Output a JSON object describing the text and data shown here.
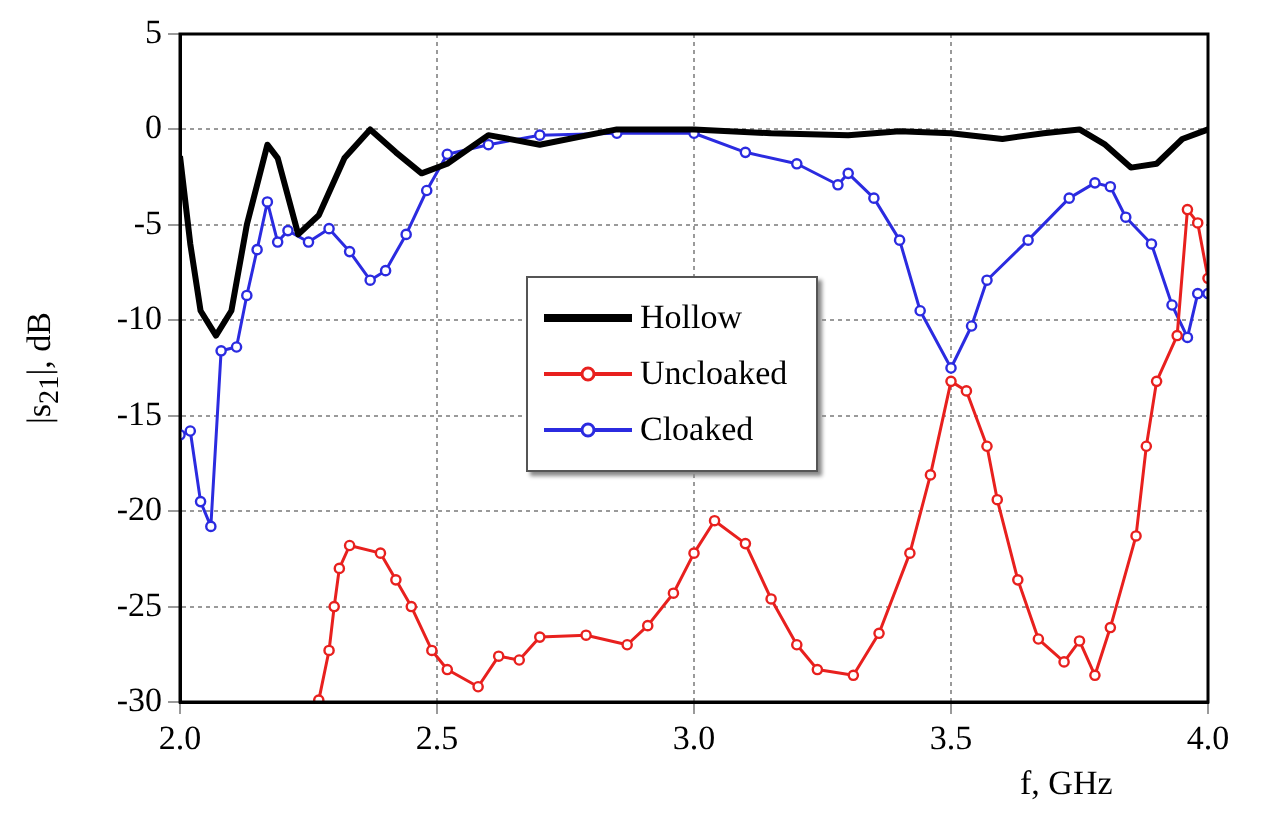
{
  "chart_data": {
    "type": "line",
    "xlabel": "f, GHz",
    "ylabel": "|s$_{21}$|, dB",
    "xlim": [
      2,
      4
    ],
    "ylim": [
      -30,
      5
    ],
    "xticks": [
      {
        "value": 2,
        "label": "2.0"
      },
      {
        "value": 2.5,
        "label": "2.5"
      },
      {
        "value": 3,
        "label": "3.0"
      },
      {
        "value": 3.5,
        "label": "3.5"
      },
      {
        "value": 4,
        "label": "4.0"
      }
    ],
    "yticks": [
      5,
      0,
      -5,
      -10,
      -15,
      -20,
      -25,
      -30
    ],
    "grid": true,
    "legend": "center",
    "line_style": "solid",
    "series": [
      {
        "name": "Hollow",
        "color": "#000000",
        "marker": "none",
        "x": [
          2.0,
          2.02,
          2.04,
          2.07,
          2.1,
          2.13,
          2.17,
          2.19,
          2.23,
          2.27,
          2.32,
          2.37,
          2.42,
          2.47,
          2.52,
          2.6,
          2.7,
          2.85,
          3.0,
          3.15,
          3.3,
          3.4,
          3.5,
          3.6,
          3.68,
          3.75,
          3.8,
          3.85,
          3.9,
          3.95,
          4.0
        ],
        "values": [
          -1.4,
          -6,
          -9.5,
          -10.8,
          -9.5,
          -5,
          -0.8,
          -1.5,
          -5.5,
          -4.5,
          -1.5,
          0,
          -1.2,
          -2.3,
          -1.8,
          -0.3,
          -0.8,
          0,
          0,
          -0.2,
          -0.3,
          -0.1,
          -0.2,
          -0.5,
          -0.2,
          0,
          -0.8,
          -2,
          -1.8,
          -0.5,
          0
        ]
      },
      {
        "name": "Uncloaked",
        "color": "#e8201e",
        "marker": "circle",
        "x": [
          2.27,
          2.29,
          2.3,
          2.31,
          2.33,
          2.39,
          2.42,
          2.45,
          2.49,
          2.52,
          2.58,
          2.62,
          2.66,
          2.7,
          2.79,
          2.87,
          2.91,
          2.96,
          3.0,
          3.04,
          3.1,
          3.15,
          3.2,
          3.24,
          3.31,
          3.36,
          3.42,
          3.46,
          3.5,
          3.53,
          3.57,
          3.59,
          3.63,
          3.67,
          3.72,
          3.75,
          3.78,
          3.81,
          3.86,
          3.88,
          3.9,
          3.94,
          3.96,
          3.98,
          4.0
        ],
        "values": [
          -29.9,
          -27.3,
          -25,
          -23,
          -21.8,
          -22.2,
          -23.6,
          -25,
          -27.3,
          -28.3,
          -29.2,
          -27.6,
          -27.8,
          -26.6,
          -26.5,
          -27,
          -26,
          -24.3,
          -22.2,
          -20.5,
          -21.7,
          -24.6,
          -27,
          -28.3,
          -28.6,
          -26.4,
          -22.2,
          -18.1,
          -13.2,
          -13.7,
          -16.6,
          -19.4,
          -23.6,
          -26.7,
          -27.9,
          -26.8,
          -28.6,
          -26.1,
          -21.3,
          -16.6,
          -13.2,
          -10.8,
          -4.2,
          -4.9,
          -7.8
        ]
      },
      {
        "name": "Cloaked",
        "color": "#2b2be0",
        "marker": "circle",
        "x": [
          2.0,
          2.02,
          2.04,
          2.06,
          2.08,
          2.11,
          2.13,
          2.15,
          2.17,
          2.19,
          2.21,
          2.25,
          2.29,
          2.33,
          2.37,
          2.4,
          2.44,
          2.48,
          2.52,
          2.6,
          2.7,
          2.85,
          3.0,
          3.1,
          3.2,
          3.28,
          3.3,
          3.35,
          3.4,
          3.44,
          3.5,
          3.54,
          3.57,
          3.65,
          3.73,
          3.78,
          3.81,
          3.84,
          3.89,
          3.93,
          3.96,
          3.98,
          4.0
        ],
        "values": [
          -16,
          -15.8,
          -19.5,
          -20.8,
          -11.6,
          -11.4,
          -8.7,
          -6.3,
          -3.8,
          -5.9,
          -5.3,
          -5.9,
          -5.2,
          -6.4,
          -7.9,
          -7.4,
          -5.5,
          -3.2,
          -1.3,
          -0.8,
          -0.3,
          -0.2,
          -0.2,
          -1.2,
          -1.8,
          -2.9,
          -2.3,
          -3.6,
          -5.8,
          -9.5,
          -12.5,
          -10.3,
          -7.9,
          -5.8,
          -3.6,
          -2.8,
          -3,
          -4.6,
          -6,
          -9.2,
          -10.9,
          -8.6,
          -8.6
        ]
      }
    ]
  }
}
